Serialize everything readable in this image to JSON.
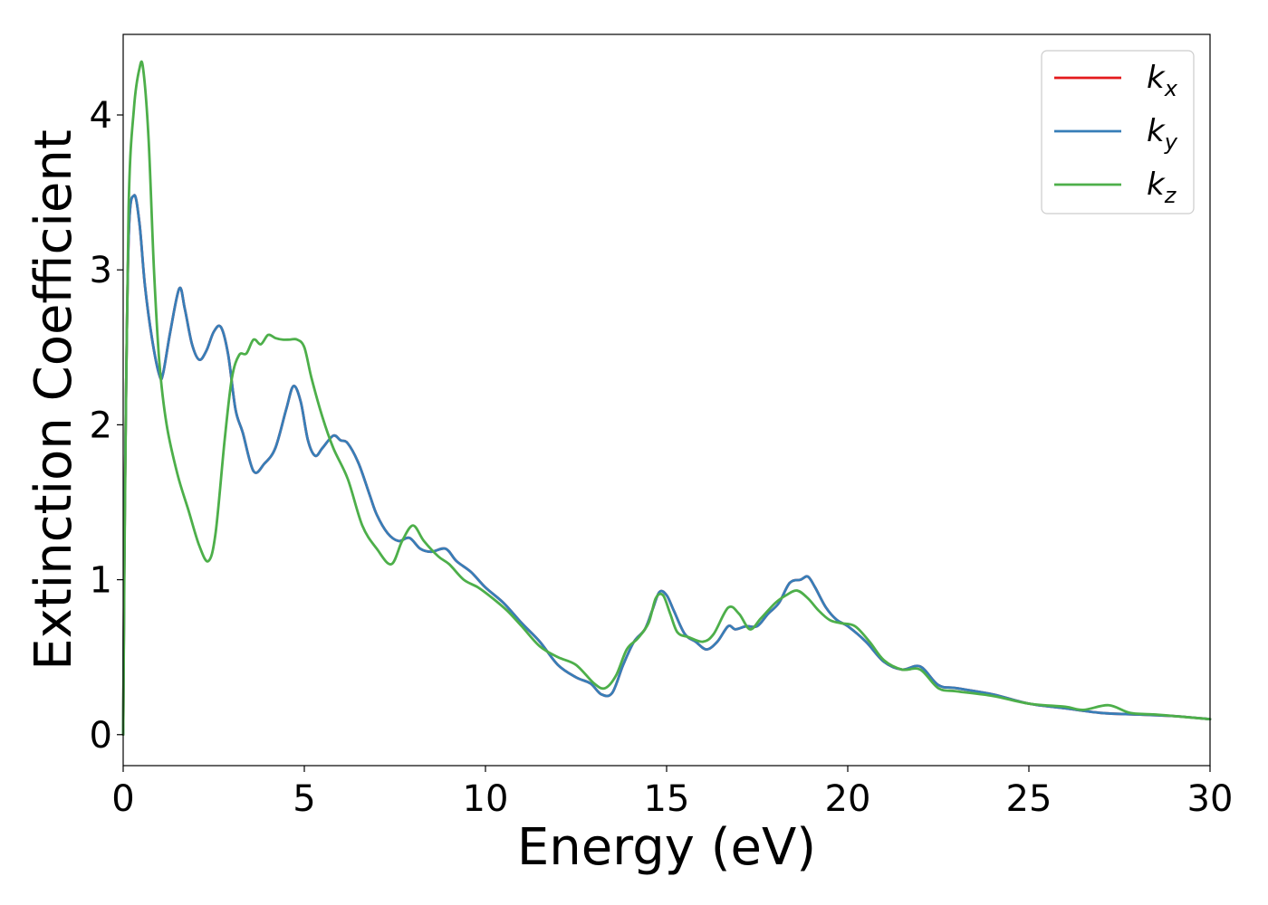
{
  "chart_data": {
    "type": "line",
    "xlabel": "Energy (eV)",
    "ylabel": "Extinction Coefficient",
    "xlim": [
      0,
      30
    ],
    "ylim": [
      -0.2,
      4.52
    ],
    "xticks": [
      "0",
      "5",
      "10",
      "15",
      "20",
      "25",
      "30"
    ],
    "yticks": [
      "0",
      "1",
      "2",
      "3",
      "4"
    ],
    "grid": false,
    "legend_position": "top-right",
    "series": [
      {
        "name": "kx",
        "label_base": "k",
        "label_sub": "x",
        "color": "#e41a1c",
        "x": [
          0,
          0.05,
          0.15,
          0.3,
          0.45,
          0.6,
          0.8,
          1.0,
          1.1,
          1.3,
          1.55,
          1.7,
          1.9,
          2.1,
          2.3,
          2.5,
          2.7,
          2.9,
          3.1,
          3.3,
          3.6,
          3.9,
          4.2,
          4.5,
          4.7,
          4.9,
          5.1,
          5.3,
          5.5,
          5.8,
          6.0,
          6.2,
          6.5,
          6.8,
          7.0,
          7.3,
          7.6,
          7.9,
          8.2,
          8.5,
          8.9,
          9.2,
          9.6,
          10.0,
          10.5,
          11.0,
          11.5,
          12.0,
          12.5,
          12.9,
          13.2,
          13.5,
          13.8,
          14.1,
          14.4,
          14.6,
          14.8,
          15.0,
          15.2,
          15.5,
          15.8,
          16.1,
          16.4,
          16.7,
          16.9,
          17.2,
          17.5,
          17.8,
          18.1,
          18.4,
          18.7,
          18.9,
          19.1,
          19.4,
          19.7,
          20.0,
          20.5,
          21.0,
          21.5,
          22.0,
          22.5,
          23.0,
          24.0,
          25.0,
          26.0,
          27.0,
          28.0,
          29.0,
          30.0
        ],
        "y": [
          0.0,
          1.6,
          3.2,
          3.48,
          3.3,
          2.9,
          2.55,
          2.32,
          2.33,
          2.6,
          2.88,
          2.75,
          2.52,
          2.42,
          2.48,
          2.6,
          2.63,
          2.45,
          2.1,
          1.95,
          1.7,
          1.75,
          1.85,
          2.1,
          2.25,
          2.15,
          1.9,
          1.8,
          1.85,
          1.93,
          1.9,
          1.88,
          1.75,
          1.55,
          1.42,
          1.3,
          1.25,
          1.27,
          1.2,
          1.18,
          1.2,
          1.12,
          1.05,
          0.95,
          0.85,
          0.72,
          0.6,
          0.45,
          0.37,
          0.33,
          0.26,
          0.27,
          0.45,
          0.6,
          0.68,
          0.8,
          0.92,
          0.9,
          0.8,
          0.65,
          0.6,
          0.55,
          0.6,
          0.7,
          0.68,
          0.7,
          0.7,
          0.78,
          0.85,
          0.98,
          1.0,
          1.02,
          0.95,
          0.82,
          0.74,
          0.7,
          0.6,
          0.47,
          0.42,
          0.44,
          0.32,
          0.3,
          0.26,
          0.2,
          0.17,
          0.14,
          0.13,
          0.12,
          0.1
        ]
      },
      {
        "name": "ky",
        "label_base": "k",
        "label_sub": "y",
        "color": "#377eb8",
        "x": [
          0,
          0.05,
          0.15,
          0.3,
          0.45,
          0.6,
          0.8,
          1.0,
          1.1,
          1.3,
          1.55,
          1.7,
          1.9,
          2.1,
          2.3,
          2.5,
          2.7,
          2.9,
          3.1,
          3.3,
          3.6,
          3.9,
          4.2,
          4.5,
          4.7,
          4.9,
          5.1,
          5.3,
          5.5,
          5.8,
          6.0,
          6.2,
          6.5,
          6.8,
          7.0,
          7.3,
          7.6,
          7.9,
          8.2,
          8.5,
          8.9,
          9.2,
          9.6,
          10.0,
          10.5,
          11.0,
          11.5,
          12.0,
          12.5,
          12.9,
          13.2,
          13.5,
          13.8,
          14.1,
          14.4,
          14.6,
          14.8,
          15.0,
          15.2,
          15.5,
          15.8,
          16.1,
          16.4,
          16.7,
          16.9,
          17.2,
          17.5,
          17.8,
          18.1,
          18.4,
          18.7,
          18.9,
          19.1,
          19.4,
          19.7,
          20.0,
          20.5,
          21.0,
          21.5,
          22.0,
          22.5,
          23.0,
          24.0,
          25.0,
          26.0,
          27.0,
          28.0,
          29.0,
          30.0
        ],
        "y": [
          0.0,
          1.6,
          3.2,
          3.48,
          3.3,
          2.9,
          2.55,
          2.32,
          2.33,
          2.6,
          2.88,
          2.75,
          2.52,
          2.42,
          2.48,
          2.6,
          2.63,
          2.45,
          2.1,
          1.95,
          1.7,
          1.75,
          1.85,
          2.1,
          2.25,
          2.15,
          1.9,
          1.8,
          1.85,
          1.93,
          1.9,
          1.88,
          1.75,
          1.55,
          1.42,
          1.3,
          1.25,
          1.27,
          1.2,
          1.18,
          1.2,
          1.12,
          1.05,
          0.95,
          0.85,
          0.72,
          0.6,
          0.45,
          0.37,
          0.33,
          0.26,
          0.27,
          0.45,
          0.6,
          0.68,
          0.8,
          0.92,
          0.9,
          0.8,
          0.65,
          0.6,
          0.55,
          0.6,
          0.7,
          0.68,
          0.7,
          0.7,
          0.78,
          0.85,
          0.98,
          1.0,
          1.02,
          0.95,
          0.82,
          0.74,
          0.7,
          0.6,
          0.47,
          0.42,
          0.44,
          0.32,
          0.3,
          0.26,
          0.2,
          0.17,
          0.14,
          0.13,
          0.12,
          0.1
        ]
      },
      {
        "name": "kz",
        "label_base": "k",
        "label_sub": "z",
        "color": "#4daf4a",
        "x": [
          0,
          0.05,
          0.15,
          0.3,
          0.45,
          0.55,
          0.7,
          0.85,
          1.0,
          1.2,
          1.5,
          1.8,
          2.1,
          2.35,
          2.55,
          2.8,
          3.0,
          3.2,
          3.4,
          3.6,
          3.8,
          4.0,
          4.2,
          4.4,
          4.6,
          4.8,
          5.0,
          5.2,
          5.5,
          5.8,
          6.2,
          6.6,
          7.0,
          7.4,
          7.7,
          8.0,
          8.3,
          8.7,
          9.0,
          9.4,
          9.8,
          10.2,
          10.6,
          11.0,
          11.5,
          12.0,
          12.5,
          13.0,
          13.3,
          13.6,
          13.9,
          14.2,
          14.5,
          14.7,
          14.9,
          15.1,
          15.3,
          15.6,
          16.0,
          16.3,
          16.7,
          17.0,
          17.3,
          17.6,
          18.0,
          18.3,
          18.6,
          18.9,
          19.2,
          19.5,
          19.8,
          20.2,
          20.6,
          21.0,
          21.5,
          22.0,
          22.5,
          23.0,
          24.0,
          25.0,
          26.0,
          26.5,
          27.2,
          27.8,
          28.5,
          29.0,
          29.5,
          30.0
        ],
        "y": [
          0.0,
          1.5,
          3.4,
          4.05,
          4.3,
          4.3,
          3.85,
          3.0,
          2.4,
          2.0,
          1.68,
          1.45,
          1.22,
          1.12,
          1.3,
          1.9,
          2.3,
          2.45,
          2.46,
          2.55,
          2.52,
          2.58,
          2.56,
          2.55,
          2.55,
          2.55,
          2.5,
          2.3,
          2.05,
          1.85,
          1.65,
          1.35,
          1.2,
          1.1,
          1.25,
          1.35,
          1.25,
          1.15,
          1.1,
          1.0,
          0.95,
          0.88,
          0.8,
          0.7,
          0.57,
          0.5,
          0.45,
          0.33,
          0.3,
          0.38,
          0.55,
          0.62,
          0.72,
          0.88,
          0.9,
          0.78,
          0.66,
          0.63,
          0.6,
          0.65,
          0.82,
          0.78,
          0.68,
          0.75,
          0.85,
          0.9,
          0.93,
          0.88,
          0.8,
          0.74,
          0.72,
          0.7,
          0.6,
          0.48,
          0.42,
          0.42,
          0.3,
          0.28,
          0.25,
          0.2,
          0.18,
          0.16,
          0.19,
          0.14,
          0.13,
          0.12,
          0.11,
          0.1
        ]
      }
    ]
  }
}
